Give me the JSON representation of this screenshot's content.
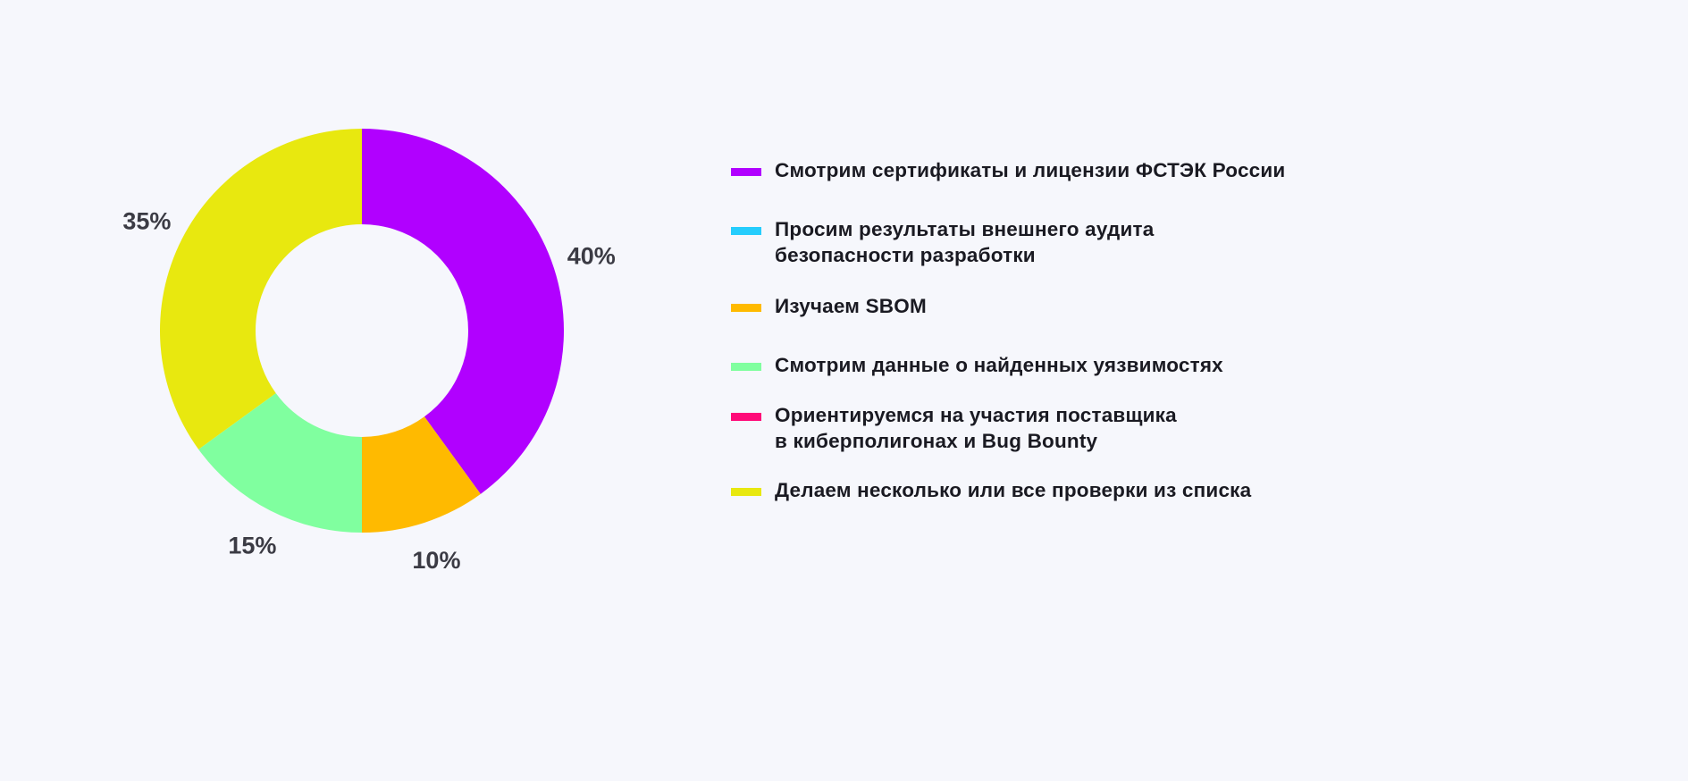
{
  "chart_data": {
    "type": "pie",
    "donut": true,
    "categories": [
      "Смотрим сертификаты и лицензии ФСТЭК России",
      "Просим результаты внешнего аудита безопасности разработки",
      "Изучаем SBOM",
      "Смотрим данные о найденных уязвимостях",
      "Ориентируемся на участия поставщика в киберполигонах и Bug Bounty",
      "Делаем несколько или все проверки из списка"
    ],
    "legend_lines": [
      [
        "Смотрим сертификаты и лицензии ФСТЭК России"
      ],
      [
        "Просим результаты внешнего аудита",
        "безопасности разработки"
      ],
      [
        "Изучаем SBOM"
      ],
      [
        "Смотрим данные о найденных уязвимостях"
      ],
      [
        "Ориентируемся на участия поставщика",
        "в киберполигонах и Bug Bounty"
      ],
      [
        "Делаем несколько или все проверки из списка"
      ]
    ],
    "values": [
      40,
      0,
      10,
      15,
      0,
      35
    ],
    "data_labels": [
      "40%",
      "",
      "10%",
      "15%",
      "",
      "35%"
    ],
    "colors": [
      "#b100ff",
      "#25cdfd",
      "#ffba00",
      "#80ff9f",
      "#ff0a78",
      "#e8e80f"
    ],
    "legend_position": "right",
    "start_angle": "top, clockwise"
  }
}
